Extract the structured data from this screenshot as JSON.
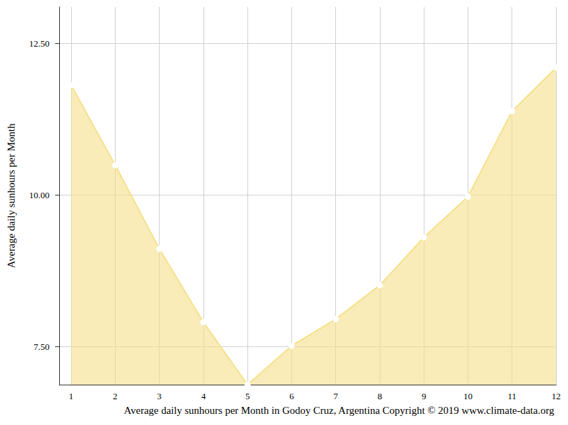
{
  "chart_data": {
    "type": "line",
    "x_label": "Average daily sunhours per Month in Godoy Cruz, Argentina Copyright © 2019 www.climate-data.org",
    "y_label": "Average daily sunhours per Month",
    "x": [
      1,
      2,
      3,
      4,
      5,
      6,
      7,
      8,
      9,
      10,
      11,
      12
    ],
    "values": [
      11.81,
      10.49,
      9.11,
      7.9,
      6.87,
      7.51,
      7.95,
      8.51,
      9.3,
      9.97,
      11.38,
      12.1
    ],
    "color": "#f5e08a",
    "marker": "circle",
    "xlim": [
      0.73,
      12
    ],
    "xticks": [
      1,
      2,
      3,
      4,
      5,
      6,
      7,
      8,
      9,
      10,
      11,
      12
    ],
    "ylim": [
      6.87,
      13.1
    ],
    "yticks": [
      {
        "value": 7.5,
        "label": "7.50"
      },
      {
        "value": 10,
        "label": "10.00"
      },
      {
        "value": 12.5,
        "label": "12.50"
      }
    ],
    "grid": true
  }
}
